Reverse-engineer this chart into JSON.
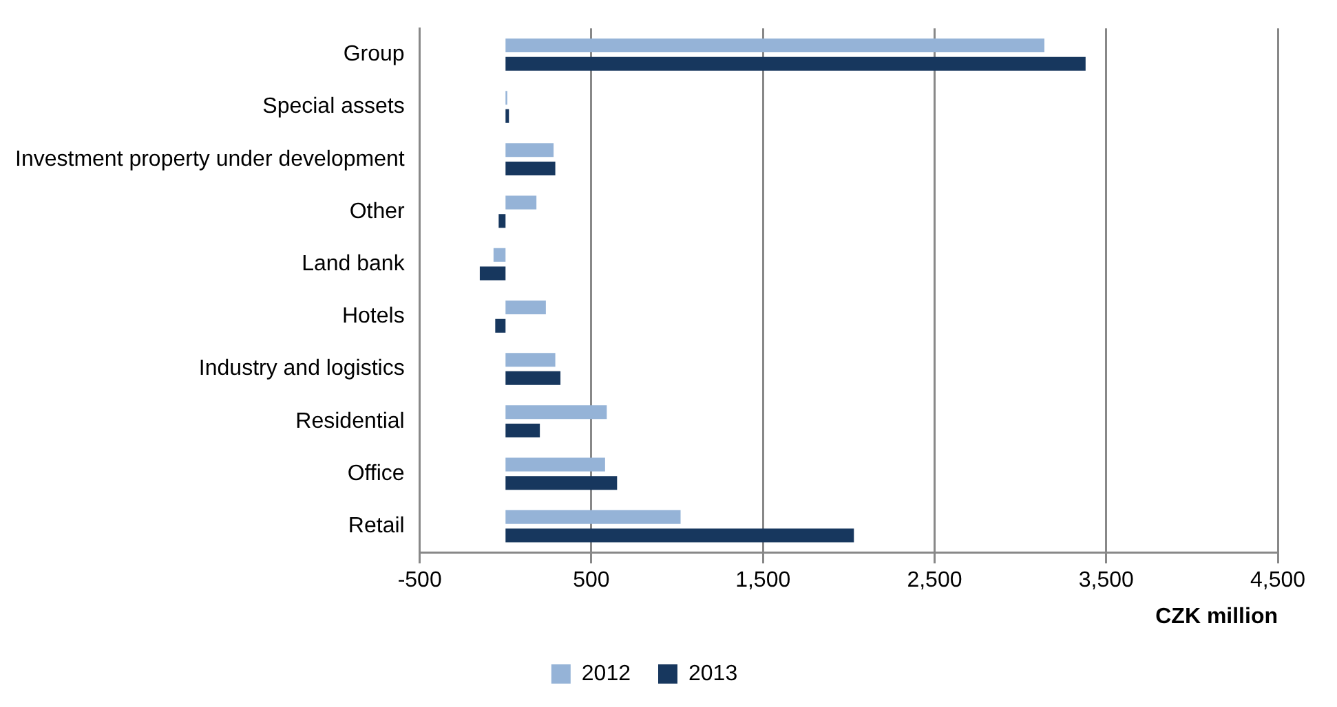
{
  "chart_data": {
    "type": "bar",
    "orientation": "horizontal",
    "xlabel": "CZK million",
    "categories": [
      "Group",
      "Special assets",
      "Investment property under development",
      "Other",
      "Land bank",
      "Hotels",
      "Industry and logistics",
      "Residential",
      "Office",
      "Retail"
    ],
    "series": [
      {
        "name": "2012",
        "color": "#95b3d7",
        "values": [
          3140,
          10,
          280,
          180,
          -70,
          235,
          290,
          590,
          580,
          1020
        ]
      },
      {
        "name": "2013",
        "color": "#17375e",
        "values": [
          3380,
          20,
          290,
          -40,
          -150,
          -60,
          320,
          200,
          650,
          2030
        ]
      }
    ],
    "xlim": [
      -500,
      4500
    ],
    "xticks": [
      {
        "value": -500,
        "label": "-500"
      },
      {
        "value": 500,
        "label": "500"
      },
      {
        "value": 1500,
        "label": "1,500"
      },
      {
        "value": 2500,
        "label": "2,500"
      },
      {
        "value": 3500,
        "label": "3,500"
      },
      {
        "value": 4500,
        "label": "4,500"
      }
    ],
    "grid": "x",
    "legend": "bottom"
  }
}
